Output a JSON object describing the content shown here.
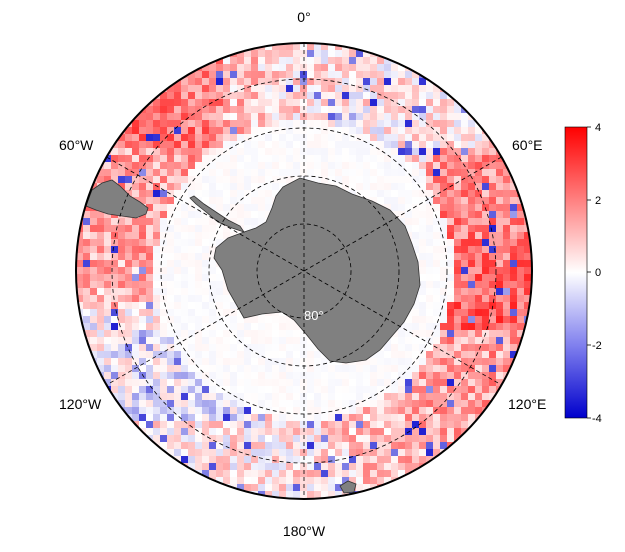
{
  "map": {
    "projection": "south polar stereographic",
    "longitude_labels": {
      "top": "0°",
      "upper_right": "60°E",
      "lower_right": "120°E",
      "bottom": "180°W",
      "lower_left": "120°W",
      "upper_left": "60°W"
    },
    "latitude_label": "80°",
    "land_color": "#808080",
    "ocean_color": "#ffffff",
    "graticule_style": "dashed"
  },
  "colorbar": {
    "ticks": [
      "4",
      "2",
      "0",
      "-2",
      "-4"
    ],
    "tick_values": [
      4,
      2,
      0,
      -2,
      -4
    ],
    "range": [
      -4,
      4
    ],
    "colors": {
      "high": "#ff0000",
      "mid": "#ffffff",
      "low": "#0000cc"
    }
  }
}
